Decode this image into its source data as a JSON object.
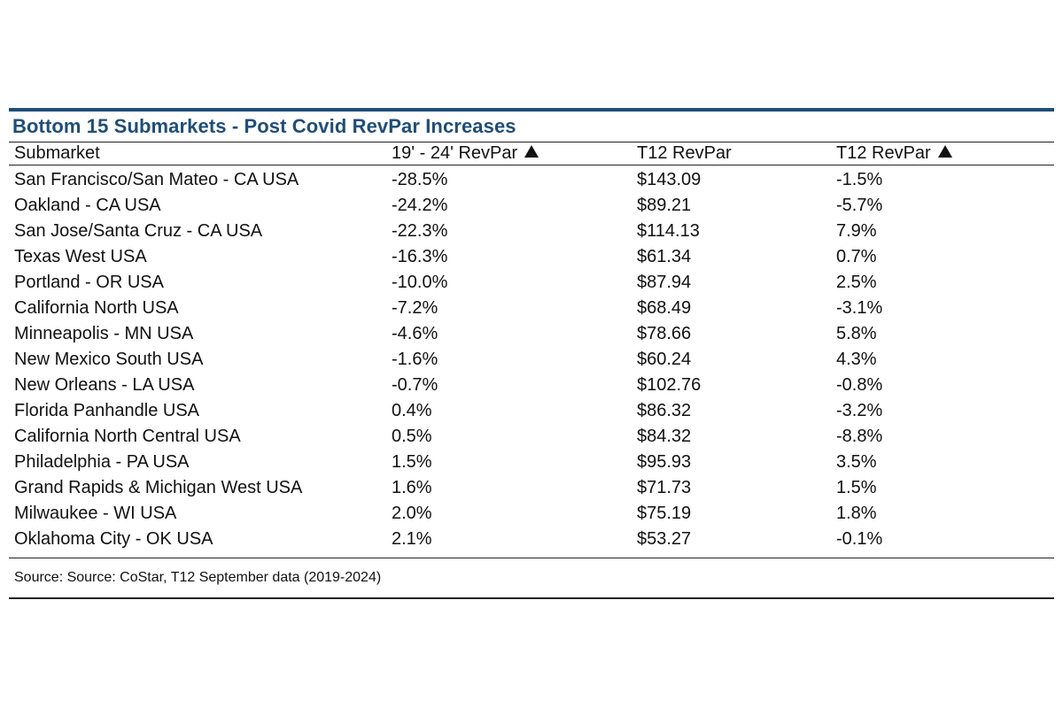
{
  "chart_data": {
    "type": "table",
    "title": "Bottom 15 Submarkets - Post Covid RevPar Increases",
    "columns": [
      "Submarket",
      "19' - 24' RevPar",
      "T12 RevPar",
      "T12 RevPar"
    ],
    "column_up_arrows": [
      false,
      true,
      false,
      true
    ],
    "rows": [
      {
        "submarket": "San Francisco/San Mateo - CA USA",
        "change_19_24": "-28.5%",
        "t12_revpar": "$143.09",
        "t12_change": "-1.5%"
      },
      {
        "submarket": "Oakland - CA USA",
        "change_19_24": "-24.2%",
        "t12_revpar": "$89.21",
        "t12_change": "-5.7%"
      },
      {
        "submarket": "San Jose/Santa Cruz - CA USA",
        "change_19_24": "-22.3%",
        "t12_revpar": "$114.13",
        "t12_change": "7.9%"
      },
      {
        "submarket": "Texas West USA",
        "change_19_24": "-16.3%",
        "t12_revpar": "$61.34",
        "t12_change": "0.7%"
      },
      {
        "submarket": "Portland - OR USA",
        "change_19_24": "-10.0%",
        "t12_revpar": "$87.94",
        "t12_change": "2.5%"
      },
      {
        "submarket": "California North USA",
        "change_19_24": "-7.2%",
        "t12_revpar": "$68.49",
        "t12_change": "-3.1%"
      },
      {
        "submarket": "Minneapolis - MN USA",
        "change_19_24": "-4.6%",
        "t12_revpar": "$78.66",
        "t12_change": "5.8%"
      },
      {
        "submarket": "New Mexico South USA",
        "change_19_24": "-1.6%",
        "t12_revpar": "$60.24",
        "t12_change": "4.3%"
      },
      {
        "submarket": "New Orleans - LA USA",
        "change_19_24": "-0.7%",
        "t12_revpar": "$102.76",
        "t12_change": "-0.8%"
      },
      {
        "submarket": "Florida Panhandle USA",
        "change_19_24": "0.4%",
        "t12_revpar": "$86.32",
        "t12_change": "-3.2%"
      },
      {
        "submarket": "California North Central USA",
        "change_19_24": "0.5%",
        "t12_revpar": "$84.32",
        "t12_change": "-8.8%"
      },
      {
        "submarket": "Philadelphia - PA USA",
        "change_19_24": "1.5%",
        "t12_revpar": "$95.93",
        "t12_change": "3.5%"
      },
      {
        "submarket": "Grand Rapids & Michigan West USA",
        "change_19_24": "1.6%",
        "t12_revpar": "$71.73",
        "t12_change": "1.5%"
      },
      {
        "submarket": "Milwaukee - WI USA",
        "change_19_24": "2.0%",
        "t12_revpar": "$75.19",
        "t12_change": "1.8%"
      },
      {
        "submarket": "Oklahoma City - OK USA",
        "change_19_24": "2.1%",
        "t12_revpar": "$53.27",
        "t12_change": "-0.1%"
      }
    ],
    "source": "Source: Source: CoStar, T12 September data (2019-2024)"
  },
  "colors": {
    "title": "#1f4e79",
    "rule": "#1f4e79",
    "text": "#111111"
  }
}
